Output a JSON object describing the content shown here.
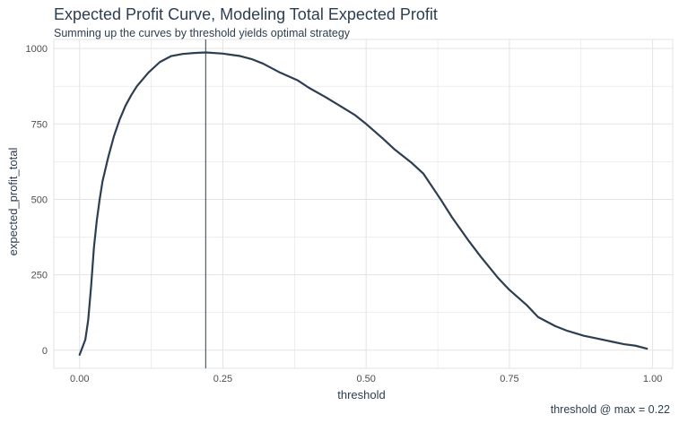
{
  "chart_data": {
    "type": "line",
    "title": "Expected Profit Curve, Modeling Total Expected Profit",
    "subtitle": "Summing up the curves by threshold yields optimal strategy",
    "caption": "threshold @ max = 0.22",
    "xlabel": "threshold",
    "ylabel": "expected_profit_total",
    "xlim": [
      -0.045,
      1.035
    ],
    "ylim": [
      -60,
      1030
    ],
    "xticks": [
      0,
      0.25,
      0.5,
      0.75,
      1.0
    ],
    "xtick_labels": [
      "0.00",
      "0.25",
      "0.50",
      "0.75",
      "1.00"
    ],
    "yticks": [
      0,
      250,
      500,
      750,
      1000
    ],
    "ytick_labels": [
      "0",
      "250",
      "500",
      "750",
      "1000"
    ],
    "grid": true,
    "vline_x": 0.22,
    "colors": {
      "line": "#2c3e50",
      "vline": "#2c3e50",
      "grid": "#e3e3e3",
      "text": "#2c3e50",
      "tick_text": "#4d4d4d"
    },
    "x": [
      0.0,
      0.01,
      0.015,
      0.02,
      0.025,
      0.03,
      0.035,
      0.04,
      0.05,
      0.06,
      0.07,
      0.08,
      0.09,
      0.1,
      0.12,
      0.14,
      0.16,
      0.18,
      0.2,
      0.22,
      0.25,
      0.28,
      0.3,
      0.32,
      0.35,
      0.38,
      0.4,
      0.43,
      0.45,
      0.48,
      0.5,
      0.53,
      0.55,
      0.58,
      0.6,
      0.63,
      0.65,
      0.68,
      0.7,
      0.73,
      0.75,
      0.78,
      0.8,
      0.83,
      0.85,
      0.88,
      0.9,
      0.93,
      0.95,
      0.97,
      0.99
    ],
    "y": [
      -15,
      35,
      100,
      210,
      340,
      430,
      500,
      560,
      640,
      710,
      765,
      810,
      845,
      875,
      920,
      955,
      975,
      982,
      985,
      987,
      983,
      975,
      965,
      950,
      920,
      895,
      870,
      838,
      815,
      780,
      750,
      700,
      665,
      620,
      585,
      500,
      440,
      360,
      310,
      240,
      200,
      150,
      110,
      80,
      65,
      48,
      40,
      28,
      20,
      15,
      5
    ]
  }
}
